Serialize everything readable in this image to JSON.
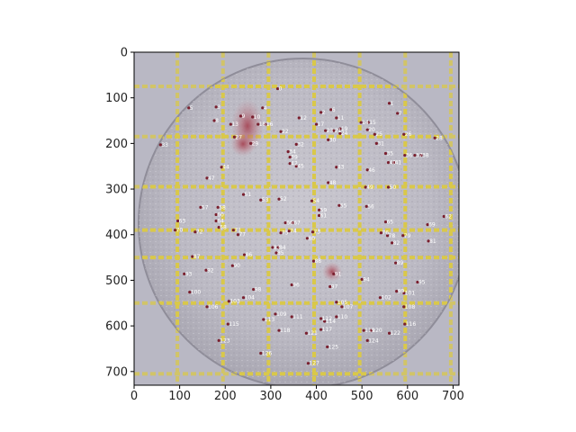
{
  "figure": {
    "x_ticks": [
      "0",
      "100",
      "200",
      "300",
      "400",
      "500",
      "600",
      "700"
    ],
    "y_ticks": [
      "0",
      "100",
      "200",
      "300",
      "400",
      "500",
      "600",
      "700"
    ],
    "xlim": [
      0,
      713
    ],
    "ylim": [
      730,
      0
    ]
  },
  "colonies": [
    {
      "id": "0",
      "x": 315,
      "y": 80
    },
    {
      "id": "1",
      "x": 560,
      "y": 112
    },
    {
      "id": "2",
      "x": 410,
      "y": 132
    },
    {
      "id": "3",
      "x": 180,
      "y": 120
    },
    {
      "id": "4",
      "x": 282,
      "y": 122
    },
    {
      "id": "5",
      "x": 120,
      "y": 122
    },
    {
      "id": "6",
      "x": 432,
      "y": 126
    },
    {
      "id": "7",
      "x": 578,
      "y": 134
    },
    {
      "id": "8",
      "x": 176,
      "y": 150
    },
    {
      "id": "9",
      "x": 234,
      "y": 140
    },
    {
      "id": "10",
      "x": 260,
      "y": 142
    },
    {
      "id": "11",
      "x": 444,
      "y": 144
    },
    {
      "id": "12",
      "x": 362,
      "y": 144
    },
    {
      "id": "13",
      "x": 212,
      "y": 158
    },
    {
      "id": "14",
      "x": 498,
      "y": 154
    },
    {
      "id": "15",
      "x": 514,
      "y": 154
    },
    {
      "id": "16",
      "x": 288,
      "y": 158
    },
    {
      "id": "17",
      "x": 400,
      "y": 158
    },
    {
      "id": "18",
      "x": 272,
      "y": 158
    },
    {
      "id": "19",
      "x": 452,
      "y": 168
    },
    {
      "id": "20",
      "x": 512,
      "y": 170
    },
    {
      "id": "21",
      "x": 438,
      "y": 172
    },
    {
      "id": "22",
      "x": 322,
      "y": 174
    },
    {
      "id": "23",
      "x": 420,
      "y": 172
    },
    {
      "id": "24",
      "x": 452,
      "y": 178
    },
    {
      "id": "25",
      "x": 528,
      "y": 180
    },
    {
      "id": "26",
      "x": 592,
      "y": 180
    },
    {
      "id": "27",
      "x": 220,
      "y": 186
    },
    {
      "id": "28",
      "x": 660,
      "y": 188
    },
    {
      "id": "29",
      "x": 256,
      "y": 200
    },
    {
      "id": "30",
      "x": 426,
      "y": 192
    },
    {
      "id": "31",
      "x": 532,
      "y": 200
    },
    {
      "id": "32",
      "x": 356,
      "y": 202
    },
    {
      "id": "33",
      "x": 58,
      "y": 203
    },
    {
      "id": "34",
      "x": 338,
      "y": 218
    },
    {
      "id": "35",
      "x": 552,
      "y": 222
    },
    {
      "id": "36",
      "x": 594,
      "y": 226
    },
    {
      "id": "37",
      "x": 616,
      "y": 226
    },
    {
      "id": "38",
      "x": 630,
      "y": 226
    },
    {
      "id": "39",
      "x": 342,
      "y": 230
    },
    {
      "id": "40",
      "x": 558,
      "y": 242
    },
    {
      "id": "41",
      "x": 570,
      "y": 242
    },
    {
      "id": "42",
      "x": 342,
      "y": 244
    },
    {
      "id": "43",
      "x": 444,
      "y": 252
    },
    {
      "id": "44",
      "x": 192,
      "y": 252
    },
    {
      "id": "45",
      "x": 356,
      "y": 250
    },
    {
      "id": "46",
      "x": 512,
      "y": 258
    },
    {
      "id": "47",
      "x": 160,
      "y": 276
    },
    {
      "id": "48",
      "x": 426,
      "y": 286
    },
    {
      "id": "49",
      "x": 508,
      "y": 296
    },
    {
      "id": "50",
      "x": 558,
      "y": 296
    },
    {
      "id": "51",
      "x": 240,
      "y": 312
    },
    {
      "id": "52",
      "x": 318,
      "y": 322
    },
    {
      "id": "53",
      "x": 278,
      "y": 324
    },
    {
      "id": "54",
      "x": 390,
      "y": 326
    },
    {
      "id": "55",
      "x": 450,
      "y": 336
    },
    {
      "id": "56",
      "x": 510,
      "y": 338
    },
    {
      "id": "57",
      "x": 146,
      "y": 340
    },
    {
      "id": "58",
      "x": 184,
      "y": 340
    },
    {
      "id": "59",
      "x": 406,
      "y": 346
    },
    {
      "id": "60",
      "x": 180,
      "y": 356
    },
    {
      "id": "61",
      "x": 406,
      "y": 358
    },
    {
      "id": "62",
      "x": 680,
      "y": 360
    },
    {
      "id": "63",
      "x": 96,
      "y": 370
    },
    {
      "id": "64",
      "x": 180,
      "y": 370
    },
    {
      "id": "65",
      "x": 552,
      "y": 372
    },
    {
      "id": "66",
      "x": 332,
      "y": 374
    },
    {
      "id": "67",
      "x": 348,
      "y": 374
    },
    {
      "id": "68",
      "x": 186,
      "y": 384
    },
    {
      "id": "69",
      "x": 644,
      "y": 378
    },
    {
      "id": "70",
      "x": 90,
      "y": 390
    },
    {
      "id": "71",
      "x": 218,
      "y": 390
    },
    {
      "id": "72",
      "x": 134,
      "y": 394
    },
    {
      "id": "73",
      "x": 392,
      "y": 394
    },
    {
      "id": "74",
      "x": 340,
      "y": 392
    },
    {
      "id": "75",
      "x": 322,
      "y": 396
    },
    {
      "id": "76",
      "x": 542,
      "y": 396
    },
    {
      "id": "77",
      "x": 228,
      "y": 400
    },
    {
      "id": "78",
      "x": 556,
      "y": 402
    },
    {
      "id": "79",
      "x": 590,
      "y": 402
    },
    {
      "id": "80",
      "x": 380,
      "y": 408
    },
    {
      "id": "81",
      "x": 646,
      "y": 414
    },
    {
      "id": "82",
      "x": 566,
      "y": 418
    },
    {
      "id": "83",
      "x": 304,
      "y": 428
    },
    {
      "id": "84",
      "x": 316,
      "y": 428
    },
    {
      "id": "85",
      "x": 312,
      "y": 440
    },
    {
      "id": "86",
      "x": 242,
      "y": 444
    },
    {
      "id": "87",
      "x": 128,
      "y": 448
    },
    {
      "id": "88",
      "x": 394,
      "y": 458
    },
    {
      "id": "89",
      "x": 574,
      "y": 462
    },
    {
      "id": "90",
      "x": 216,
      "y": 468
    },
    {
      "id": "91",
      "x": 438,
      "y": 486
    },
    {
      "id": "92",
      "x": 158,
      "y": 478
    },
    {
      "id": "93",
      "x": 110,
      "y": 486
    },
    {
      "id": "94",
      "x": 500,
      "y": 498
    },
    {
      "id": "95",
      "x": 622,
      "y": 504
    },
    {
      "id": "96",
      "x": 346,
      "y": 510
    },
    {
      "id": "97",
      "x": 430,
      "y": 514
    },
    {
      "id": "98",
      "x": 262,
      "y": 520
    },
    {
      "id": "99",
      "x": 576,
      "y": 524
    },
    {
      "id": "100",
      "x": 122,
      "y": 526
    },
    {
      "id": "101",
      "x": 592,
      "y": 528
    },
    {
      "id": "102",
      "x": 540,
      "y": 538
    },
    {
      "id": "103",
      "x": 208,
      "y": 546
    },
    {
      "id": "104",
      "x": 240,
      "y": 538
    },
    {
      "id": "105",
      "x": 444,
      "y": 548
    },
    {
      "id": "106",
      "x": 160,
      "y": 558
    },
    {
      "id": "107",
      "x": 456,
      "y": 558
    },
    {
      "id": "108",
      "x": 592,
      "y": 558
    },
    {
      "id": "109",
      "x": 310,
      "y": 574
    },
    {
      "id": "110",
      "x": 444,
      "y": 580
    },
    {
      "id": "111",
      "x": 346,
      "y": 580
    },
    {
      "id": "112",
      "x": 410,
      "y": 584
    },
    {
      "id": "113",
      "x": 284,
      "y": 586
    },
    {
      "id": "114",
      "x": 418,
      "y": 590
    },
    {
      "id": "115",
      "x": 206,
      "y": 596
    },
    {
      "id": "116",
      "x": 594,
      "y": 596
    },
    {
      "id": "117",
      "x": 410,
      "y": 608
    },
    {
      "id": "118",
      "x": 318,
      "y": 610
    },
    {
      "id": "119",
      "x": 504,
      "y": 610
    },
    {
      "id": "120",
      "x": 520,
      "y": 610
    },
    {
      "id": "121",
      "x": 378,
      "y": 616
    },
    {
      "id": "122",
      "x": 560,
      "y": 616
    },
    {
      "id": "123",
      "x": 186,
      "y": 632
    },
    {
      "id": "124",
      "x": 512,
      "y": 632
    },
    {
      "id": "125",
      "x": 424,
      "y": 646
    },
    {
      "id": "126",
      "x": 278,
      "y": 660
    },
    {
      "id": "127",
      "x": 382,
      "y": 682
    }
  ]
}
